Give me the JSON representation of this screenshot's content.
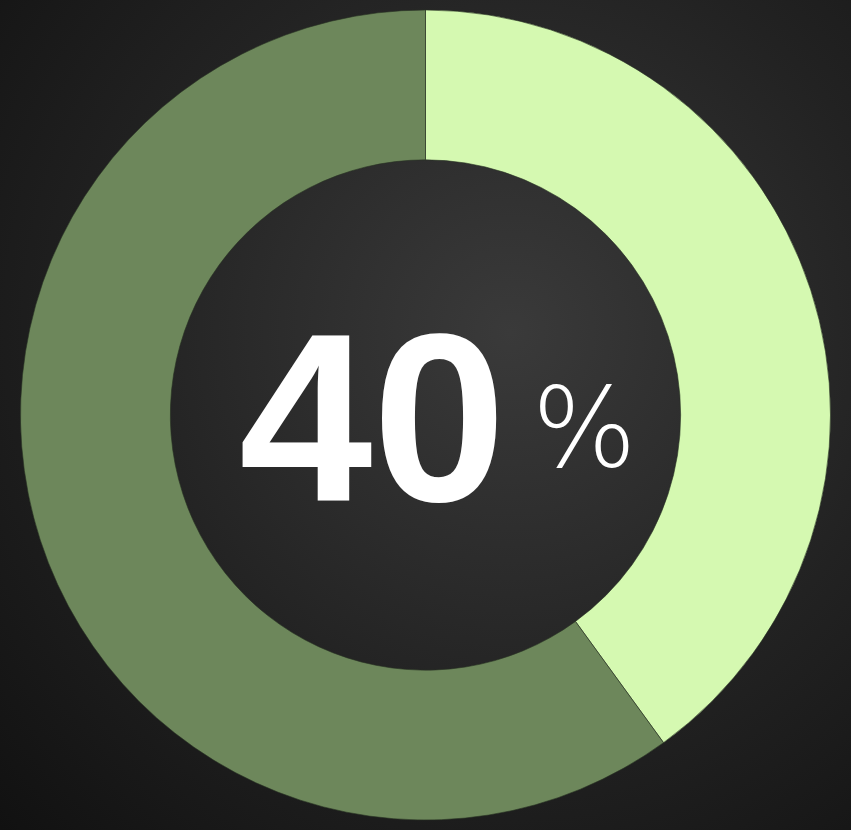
{
  "chart_data": {
    "type": "pie",
    "values": [
      40,
      60
    ],
    "colors": [
      "#d5f9b1",
      "#6d875b"
    ],
    "center_label": "40%",
    "data_labels": false
  }
}
